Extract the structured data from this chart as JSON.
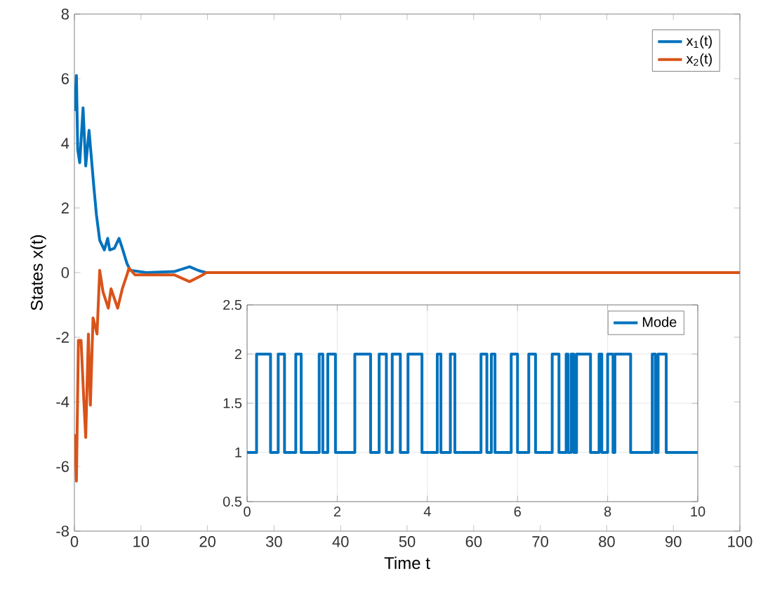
{
  "chart_data": [
    {
      "type": "line",
      "xlabel": "Time t",
      "ylabel": "States x(t)",
      "xlim": [
        0,
        100
      ],
      "ylim": [
        -8,
        8
      ],
      "xticks": [
        0,
        10,
        20,
        30,
        40,
        50,
        60,
        70,
        80,
        90,
        100
      ],
      "yticks": [
        -8,
        -6,
        -4,
        -2,
        0,
        2,
        4,
        6,
        8
      ],
      "grid": false,
      "legend": "top right",
      "series": [
        {
          "name": "x$_{1}$(t)",
          "color": "#0072bd",
          "x": [
            0,
            0.07,
            0.3,
            0.5,
            0.8,
            1.3,
            1.7,
            2.2,
            2.9,
            3.3,
            3.8,
            4.5,
            5.0,
            5.3,
            6.0,
            6.7,
            7.2,
            7.9,
            8.4,
            10.8,
            15,
            17.3,
            18.7,
            19.8,
            100
          ],
          "values": [
            5.0,
            5.1,
            6.1,
            3.8,
            3.4,
            5.1,
            3.3,
            4.4,
            2.7,
            1.8,
            1.0,
            0.7,
            1.06,
            0.7,
            0.75,
            1.06,
            0.75,
            0.28,
            0.07,
            0.0,
            0.03,
            0.18,
            0.06,
            0,
            0
          ]
        },
        {
          "name": "x$_{2}$(t)",
          "color": "#d95319",
          "x": [
            0,
            0.07,
            0.3,
            0.6,
            1.0,
            1.4,
            1.7,
            2.1,
            2.4,
            2.8,
            3.4,
            3.8,
            4.3,
            5.1,
            5.5,
            6.5,
            7.2,
            7.9,
            8.2,
            9.1,
            15,
            17.3,
            19.3,
            19.8,
            100
          ],
          "values": [
            -5.0,
            -5.1,
            -6.45,
            -2.1,
            -2.1,
            -3.9,
            -5.1,
            -1.9,
            -4.1,
            -1.4,
            -1.9,
            0.07,
            -0.6,
            -1.1,
            -0.5,
            -1.1,
            -0.5,
            -0.07,
            0.14,
            -0.07,
            -0.07,
            -0.28,
            -0.07,
            0,
            0
          ]
        }
      ]
    },
    {
      "type": "step",
      "xlim": [
        0,
        10
      ],
      "ylim": [
        0.5,
        2.5
      ],
      "xticks": [
        0,
        2,
        4,
        6,
        8,
        10
      ],
      "yticks": [
        0.5,
        1,
        1.5,
        2,
        2.5
      ],
      "grid": true,
      "legend": "top right",
      "series": [
        {
          "name": "Mode",
          "color": "#0072bd",
          "x": [
            0,
            0.21,
            0.52,
            0.69,
            0.83,
            1.08,
            1.2,
            1.6,
            1.68,
            1.79,
            1.96,
            2.39,
            2.74,
            2.93,
            3.09,
            3.22,
            3.4,
            3.57,
            3.88,
            4.22,
            4.3,
            4.51,
            4.61,
            5.19,
            5.32,
            5.42,
            5.5,
            5.86,
            6.0,
            6.25,
            6.4,
            6.77,
            6.92,
            7.08,
            7.12,
            7.19,
            7.25,
            7.31,
            7.62,
            7.81,
            7.87,
            8.0,
            8.12,
            8.16,
            8.51,
            8.99,
            9.06,
            9.12,
            9.3,
            10
          ],
          "values": [
            1,
            2,
            1,
            2,
            1,
            2,
            1,
            2,
            1,
            2,
            1,
            2,
            1,
            2,
            1,
            2,
            1,
            2,
            1,
            2,
            1,
            2,
            1,
            2,
            1,
            2,
            1,
            2,
            1,
            2,
            1,
            2,
            1,
            2,
            1,
            2,
            1,
            2,
            1,
            2,
            1,
            2,
            1,
            2,
            1,
            2,
            1,
            2,
            1,
            1
          ]
        }
      ]
    }
  ]
}
